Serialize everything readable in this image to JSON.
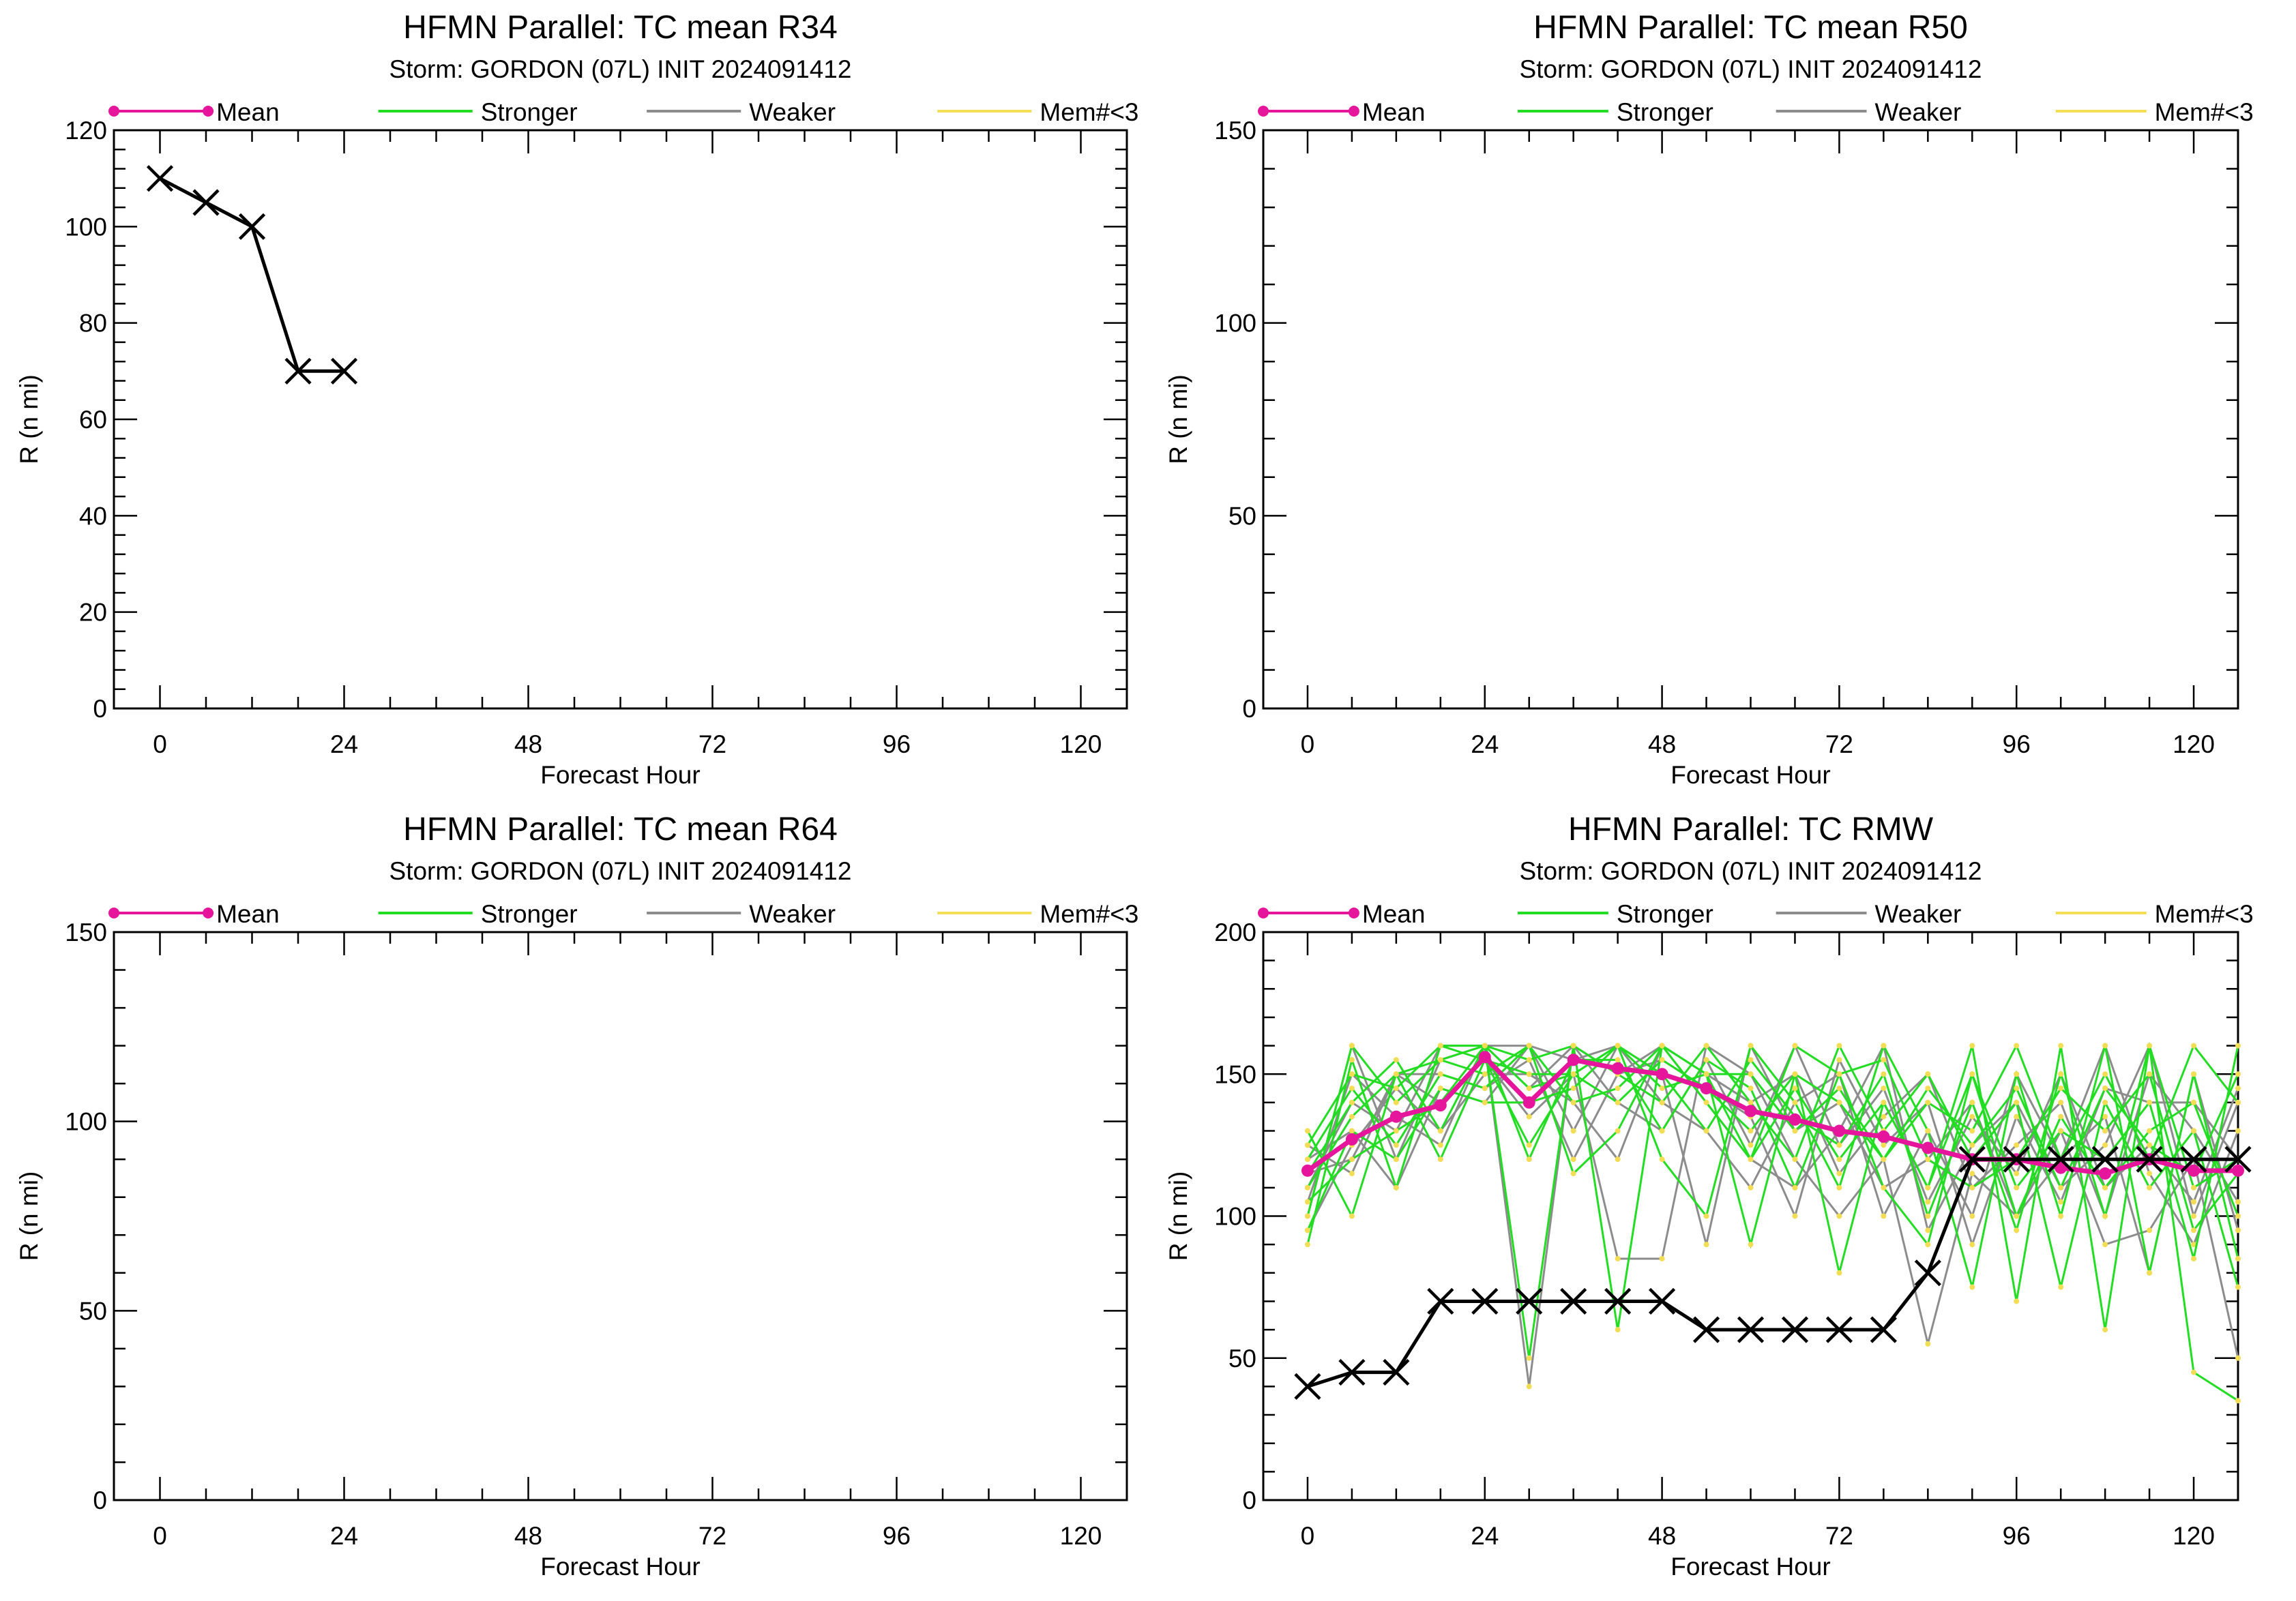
{
  "legend": {
    "items": [
      {
        "label": "Mean",
        "color": "#e6169c",
        "marker": "dot"
      },
      {
        "label": "Stronger",
        "color": "#22dd22"
      },
      {
        "label": "Weaker",
        "color": "#8c8c8c"
      },
      {
        "label": "Mem#<3",
        "color": "#f2dd55"
      }
    ]
  },
  "colors": {
    "mean": "#e6169c",
    "stronger": "#22dd22",
    "weaker": "#8c8c8c",
    "memlt3": "#f2dd55",
    "obs": "#000000"
  },
  "chart_data": [
    {
      "type": "line",
      "title": "HFMN Parallel: TC mean R34",
      "subtitle": "Storm: GORDON (07L) INIT 2024091412",
      "xlabel": "Forecast Hour",
      "ylabel": "R (n mi)",
      "xlim": [
        -6,
        126
      ],
      "ylim": [
        0,
        120
      ],
      "xticks": [
        0,
        24,
        48,
        72,
        96,
        120
      ],
      "yticks": [
        0,
        20,
        40,
        60,
        80,
        100,
        120
      ],
      "series": [
        {
          "role": "obs",
          "x": [
            0,
            6,
            12,
            18,
            24
          ],
          "y": [
            110,
            105,
            100,
            70,
            70
          ]
        }
      ]
    },
    {
      "type": "line",
      "title": "HFMN Parallel: TC mean R50",
      "subtitle": "Storm: GORDON (07L) INIT 2024091412",
      "xlabel": "Forecast Hour",
      "ylabel": "R (n mi)",
      "xlim": [
        -6,
        126
      ],
      "ylim": [
        0,
        150
      ],
      "xticks": [
        0,
        24,
        48,
        72,
        96,
        120
      ],
      "yticks": [
        0,
        50,
        100,
        150
      ],
      "series": []
    },
    {
      "type": "line",
      "title": "HFMN Parallel: TC mean R64",
      "subtitle": "Storm: GORDON (07L) INIT 2024091412",
      "xlabel": "Forecast Hour",
      "ylabel": "R (n mi)",
      "xlim": [
        -6,
        126
      ],
      "ylim": [
        0,
        150
      ],
      "xticks": [
        0,
        24,
        48,
        72,
        96,
        120
      ],
      "yticks": [
        0,
        50,
        100,
        150
      ],
      "series": []
    },
    {
      "type": "line",
      "title": "HFMN Parallel: TC RMW",
      "subtitle": "Storm: GORDON (07L) INIT 2024091412",
      "xlabel": "Forecast Hour",
      "ylabel": "R (n mi)",
      "xlim": [
        -6,
        126
      ],
      "ylim": [
        0,
        200
      ],
      "xticks": [
        0,
        24,
        48,
        72,
        96,
        120
      ],
      "yticks": [
        0,
        50,
        100,
        150,
        200
      ],
      "series": [
        {
          "role": "weaker",
          "x": [
            0,
            6,
            12,
            18,
            24,
            30,
            36,
            42,
            48,
            54,
            60,
            66,
            72,
            78,
            84,
            90,
            96,
            102,
            108,
            114,
            120,
            126
          ],
          "y": [
            100,
            160,
            120,
            155,
            160,
            40,
            160,
            150,
            160,
            140,
            120,
            110,
            130,
            160,
            95,
            125,
            140,
            110,
            125,
            160,
            100,
            140
          ]
        },
        {
          "role": "weaker",
          "x": [
            0,
            6,
            12,
            18,
            24,
            30,
            36,
            42,
            48,
            54,
            60,
            66,
            72,
            78,
            84,
            90,
            96,
            102,
            108,
            114,
            120,
            126
          ],
          "y": [
            125,
            115,
            150,
            140,
            155,
            135,
            150,
            85,
            85,
            160,
            150,
            120,
            100,
            120,
            55,
            115,
            100,
            130,
            90,
            95,
            120,
            50
          ]
        },
        {
          "role": "weaker",
          "x": [
            0,
            6,
            12,
            18,
            24,
            30,
            36,
            42,
            48,
            54,
            60,
            66,
            72,
            78,
            84,
            90,
            96,
            102,
            108,
            114,
            120,
            126
          ],
          "y": [
            110,
            140,
            130,
            160,
            160,
            160,
            155,
            160,
            140,
            130,
            110,
            140,
            150,
            100,
            130,
            100,
            150,
            120,
            160,
            115,
            90,
            130
          ]
        },
        {
          "role": "weaker",
          "x": [
            0,
            6,
            12,
            18,
            24,
            30,
            36,
            42,
            48,
            54,
            60,
            66,
            72,
            78,
            84,
            90,
            96,
            102,
            108,
            114,
            120,
            126
          ],
          "y": [
            95,
            125,
            145,
            130,
            150,
            150,
            140,
            120,
            160,
            150,
            140,
            150,
            115,
            135,
            150,
            110,
            125,
            140,
            100,
            150,
            130,
            105
          ]
        },
        {
          "role": "weaker",
          "x": [
            0,
            6,
            12,
            18,
            24,
            30,
            36,
            42,
            48,
            54,
            60,
            66,
            72,
            78,
            84,
            90,
            96,
            102,
            108,
            114,
            120,
            126
          ],
          "y": [
            120,
            130,
            110,
            145,
            140,
            160,
            130,
            160,
            150,
            90,
            160,
            130,
            140,
            110,
            120,
            140,
            100,
            120,
            135,
            80,
            150,
            95
          ]
        },
        {
          "role": "weaker",
          "x": [
            0,
            6,
            12,
            18,
            24,
            30,
            36,
            42,
            48,
            54,
            60,
            66,
            72,
            78,
            84,
            90,
            96,
            102,
            108,
            114,
            120,
            126
          ],
          "y": [
            105,
            150,
            135,
            125,
            160,
            145,
            160,
            140,
            130,
            155,
            125,
            160,
            125,
            145,
            105,
            135,
            115,
            150,
            110,
            125,
            105,
            145
          ]
        },
        {
          "role": "weaker",
          "x": [
            0,
            6,
            12,
            18,
            24,
            30,
            36,
            42,
            48,
            54,
            60,
            66,
            72,
            78,
            84,
            90,
            96,
            102,
            108,
            114,
            120,
            126
          ],
          "y": [
            115,
            120,
            150,
            150,
            145,
            155,
            120,
            150,
            155,
            145,
            135,
            100,
            155,
            125,
            140,
            90,
            135,
            105,
            145,
            140,
            140,
            120
          ]
        },
        {
          "role": "stronger",
          "x": [
            0,
            6,
            12,
            18,
            24,
            30,
            36,
            42,
            48,
            54,
            60,
            66,
            72,
            78,
            84,
            90,
            96,
            102,
            108,
            114,
            120,
            126
          ],
          "y": [
            90,
            155,
            110,
            160,
            160,
            50,
            160,
            60,
            160,
            150,
            90,
            150,
            80,
            140,
            110,
            160,
            70,
            160,
            60,
            160,
            45,
            35
          ]
        },
        {
          "role": "stronger",
          "x": [
            0,
            6,
            12,
            18,
            24,
            30,
            36,
            42,
            48,
            54,
            60,
            66,
            72,
            78,
            84,
            90,
            96,
            102,
            108,
            114,
            120,
            126
          ],
          "y": [
            130,
            100,
            150,
            120,
            155,
            125,
            150,
            160,
            120,
            100,
            160,
            140,
            110,
            160,
            130,
            75,
            150,
            100,
            160,
            80,
            150,
            85
          ]
        },
        {
          "role": "stronger",
          "x": [
            0,
            6,
            12,
            18,
            24,
            30,
            36,
            42,
            48,
            54,
            60,
            66,
            72,
            78,
            84,
            90,
            96,
            102,
            108,
            114,
            120,
            126
          ],
          "y": [
            100,
            160,
            140,
            155,
            150,
            160,
            115,
            130,
            160,
            150,
            120,
            160,
            150,
            110,
            90,
            150,
            110,
            130,
            120,
            140,
            85,
            160
          ]
        },
        {
          "role": "stronger",
          "x": [
            0,
            6,
            12,
            18,
            24,
            30,
            36,
            42,
            48,
            54,
            60,
            66,
            72,
            78,
            84,
            90,
            96,
            102,
            108,
            114,
            120,
            126
          ],
          "y": [
            115,
            140,
            155,
            130,
            160,
            155,
            160,
            150,
            140,
            160,
            140,
            120,
            160,
            130,
            150,
            120,
            140,
            75,
            140,
            110,
            130,
            75
          ]
        },
        {
          "role": "stronger",
          "x": [
            0,
            6,
            12,
            18,
            24,
            30,
            36,
            42,
            48,
            54,
            60,
            66,
            72,
            78,
            84,
            90,
            96,
            102,
            108,
            114,
            120,
            126
          ],
          "y": [
            95,
            130,
            120,
            145,
            140,
            140,
            145,
            160,
            150,
            130,
            155,
            135,
            125,
            150,
            100,
            140,
            95,
            150,
            100,
            160,
            110,
            120
          ]
        },
        {
          "role": "stronger",
          "x": [
            0,
            6,
            12,
            18,
            24,
            30,
            36,
            42,
            48,
            54,
            60,
            66,
            72,
            78,
            84,
            90,
            96,
            102,
            108,
            114,
            120,
            126
          ],
          "y": [
            125,
            150,
            145,
            160,
            155,
            150,
            150,
            140,
            155,
            145,
            130,
            150,
            140,
            120,
            140,
            130,
            160,
            120,
            150,
            120,
            160,
            140
          ]
        },
        {
          "role": "stronger",
          "x": [
            0,
            6,
            12,
            18,
            24,
            30,
            36,
            42,
            48,
            54,
            60,
            66,
            72,
            78,
            84,
            90,
            96,
            102,
            108,
            114,
            120,
            126
          ],
          "y": [
            105,
            120,
            130,
            140,
            160,
            120,
            155,
            155,
            130,
            155,
            145,
            110,
            150,
            155,
            120,
            110,
            120,
            145,
            130,
            150,
            95,
            115
          ]
        },
        {
          "role": "stronger",
          "x": [
            0,
            6,
            12,
            18,
            24,
            30,
            36,
            42,
            48,
            54,
            60,
            66,
            72,
            78,
            84,
            90,
            96,
            102,
            108,
            114,
            120,
            126
          ],
          "y": [
            120,
            145,
            125,
            150,
            145,
            160,
            140,
            145,
            160,
            140,
            120,
            145,
            120,
            140,
            110,
            150,
            100,
            135,
            110,
            130,
            140,
            100
          ]
        },
        {
          "role": "stronger",
          "x": [
            0,
            6,
            12,
            18,
            24,
            30,
            36,
            42,
            48,
            54,
            60,
            66,
            72,
            78,
            84,
            90,
            96,
            102,
            108,
            114,
            120,
            126
          ],
          "y": [
            110,
            135,
            150,
            155,
            160,
            145,
            150,
            160,
            145,
            150,
            150,
            130,
            145,
            120,
            145,
            125,
            145,
            110,
            145,
            125,
            115,
            150
          ]
        },
        {
          "role": "mean",
          "x": [
            0,
            6,
            12,
            18,
            24,
            30,
            36,
            42,
            48,
            54,
            60,
            66,
            72,
            78,
            84,
            90,
            96,
            102,
            108,
            114,
            120,
            126
          ],
          "y": [
            116,
            127,
            135,
            139,
            156,
            140,
            155,
            152,
            150,
            145,
            137,
            134,
            130,
            128,
            124,
            120,
            120,
            117,
            115,
            120,
            116,
            116
          ]
        },
        {
          "role": "obs",
          "x": [
            0,
            6,
            12,
            18,
            24,
            30,
            36,
            42,
            48,
            54,
            60,
            66,
            72,
            78,
            84,
            90,
            96,
            102,
            108,
            114,
            120,
            126
          ],
          "y": [
            40,
            45,
            45,
            70,
            70,
            70,
            70,
            70,
            70,
            60,
            60,
            60,
            60,
            60,
            80,
            120,
            120,
            120,
            120,
            120,
            120,
            120
          ]
        }
      ]
    }
  ],
  "panels": [
    {
      "title": "HFMN Parallel: TC mean R34",
      "subtitle": "Storm: GORDON (07L) INIT 2024091412",
      "xlabel": "Forecast Hour",
      "ylabel": "R (n mi)",
      "xticklabels": [
        "0",
        "24",
        "48",
        "72",
        "96",
        "120"
      ],
      "yticklabels": [
        "0",
        "20",
        "40",
        "60",
        "80",
        "100",
        "120"
      ]
    },
    {
      "title": "HFMN Parallel: TC mean R50",
      "subtitle": "Storm: GORDON (07L) INIT 2024091412",
      "xlabel": "Forecast Hour",
      "ylabel": "R (n mi)",
      "xticklabels": [
        "0",
        "24",
        "48",
        "72",
        "96",
        "120"
      ],
      "yticklabels": [
        "0",
        "50",
        "100",
        "150"
      ]
    },
    {
      "title": "HFMN Parallel: TC mean R64",
      "subtitle": "Storm: GORDON (07L) INIT 2024091412",
      "xlabel": "Forecast Hour",
      "ylabel": "R (n mi)",
      "xticklabels": [
        "0",
        "24",
        "48",
        "72",
        "96",
        "120"
      ],
      "yticklabels": [
        "0",
        "50",
        "100",
        "150"
      ]
    },
    {
      "title": "HFMN Parallel: TC RMW",
      "subtitle": "Storm: GORDON (07L) INIT 2024091412",
      "xlabel": "Forecast Hour",
      "ylabel": "R (n mi)",
      "xticklabels": [
        "0",
        "24",
        "48",
        "72",
        "96",
        "120"
      ],
      "yticklabels": [
        "0",
        "50",
        "100",
        "150",
        "200"
      ]
    }
  ]
}
